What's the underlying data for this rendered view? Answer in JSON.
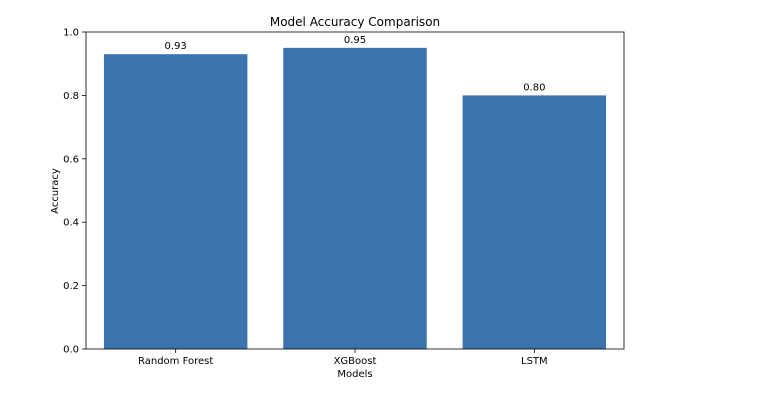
{
  "chart_data": {
    "type": "bar",
    "title": "Model Accuracy Comparison",
    "xlabel": "Models",
    "ylabel": "Accuracy",
    "categories": [
      "Random Forest",
      "XGBoost",
      "LSTM"
    ],
    "values": [
      0.93,
      0.95,
      0.8
    ],
    "data_labels": [
      "0.93",
      "0.95",
      "0.80"
    ],
    "ylim": [
      0,
      1.0
    ],
    "yticks": [
      0.0,
      0.2,
      0.4,
      0.6,
      0.8,
      1.0
    ],
    "ytick_labels": [
      "0.0",
      "0.2",
      "0.4",
      "0.6",
      "0.8",
      "1.0"
    ],
    "grid": false,
    "bar_color": "#3a73ad",
    "axis_color": "#000000"
  }
}
